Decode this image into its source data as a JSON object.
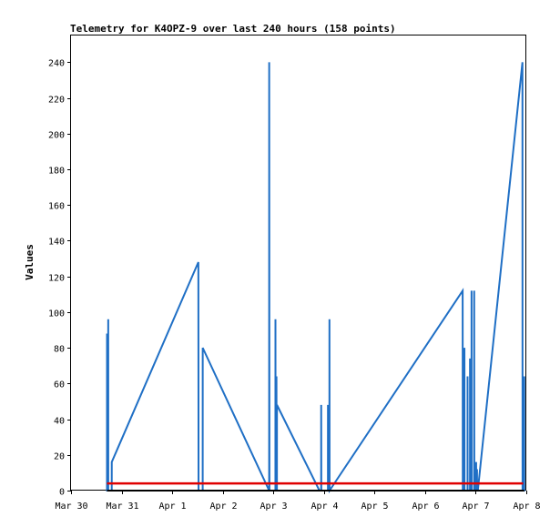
{
  "chart_data": {
    "type": "line",
    "title": "Telemetry for K4OPZ-9 over last 240 hours (158 points)",
    "xlabel": "",
    "ylabel": "Values",
    "xlim": [
      "2024-03-30T00:00",
      "2024-04-08T00:00"
    ],
    "ylim": [
      0,
      255
    ],
    "x_ticks": [
      {
        "x": "2024-03-30T00:00",
        "label": "Mar 30"
      },
      {
        "x": "2024-03-31T00:00",
        "label": "Mar 31"
      },
      {
        "x": "2024-04-01T00:00",
        "label": "Apr 1"
      },
      {
        "x": "2024-04-02T00:00",
        "label": "Apr 2"
      },
      {
        "x": "2024-04-03T00:00",
        "label": "Apr 3"
      },
      {
        "x": "2024-04-04T00:00",
        "label": "Apr 4"
      },
      {
        "x": "2024-04-05T00:00",
        "label": "Apr 5"
      },
      {
        "x": "2024-04-06T00:00",
        "label": "Apr 6"
      },
      {
        "x": "2024-04-07T00:00",
        "label": "Apr 7"
      },
      {
        "x": "2024-04-08T00:00",
        "label": "Apr 8"
      }
    ],
    "y_ticks": [
      0,
      20,
      40,
      60,
      80,
      100,
      120,
      140,
      160,
      180,
      200,
      220,
      240
    ],
    "grid": false,
    "legend": "none",
    "series": [
      {
        "color": "#1f6fc5",
        "points": [
          [
            "2024-03-30T17:04",
            0
          ],
          [
            "2024-03-30T17:05",
            88
          ],
          [
            "2024-03-30T17:06",
            0
          ],
          [
            "2024-03-30T17:38",
            0
          ],
          [
            "2024-03-30T17:39",
            96
          ],
          [
            "2024-03-30T17:40",
            0
          ],
          [
            "2024-03-30T19:19",
            0
          ],
          [
            "2024-03-30T19:20",
            16
          ],
          [
            "2024-04-01T12:25",
            128
          ],
          [
            "2024-04-01T12:30",
            0
          ],
          [
            "2024-04-01T14:28",
            0
          ],
          [
            "2024-04-01T14:29",
            80
          ],
          [
            "2024-04-02T22:00",
            0
          ],
          [
            "2024-04-02T22:01",
            240
          ],
          [
            "2024-04-02T22:08",
            0
          ],
          [
            "2024-04-03T00:58",
            0
          ],
          [
            "2024-04-03T00:59",
            96
          ],
          [
            "2024-04-03T01:03",
            0
          ],
          [
            "2024-04-03T01:27",
            0
          ],
          [
            "2024-04-03T01:28",
            64
          ],
          [
            "2024-04-03T01:32",
            0
          ],
          [
            "2024-04-03T01:41",
            0
          ],
          [
            "2024-04-03T01:42",
            48
          ],
          [
            "2024-04-03T21:51",
            0
          ],
          [
            "2024-04-03T22:40",
            0
          ],
          [
            "2024-04-03T22:41",
            48
          ],
          [
            "2024-04-03T22:45",
            0
          ],
          [
            "2024-04-04T01:53",
            0
          ],
          [
            "2024-04-04T01:54",
            48
          ],
          [
            "2024-04-04T01:58",
            0
          ],
          [
            "2024-04-04T02:35",
            0
          ],
          [
            "2024-04-04T02:36",
            96
          ],
          [
            "2024-04-04T02:40",
            0
          ],
          [
            "2024-04-06T17:48",
            112
          ],
          [
            "2024-04-06T17:52",
            0
          ],
          [
            "2024-04-06T18:38",
            0
          ],
          [
            "2024-04-06T18:39",
            80
          ],
          [
            "2024-04-06T18:41",
            0
          ],
          [
            "2024-04-06T20:07",
            0
          ],
          [
            "2024-04-06T20:08",
            64
          ],
          [
            "2024-04-06T20:10",
            0
          ],
          [
            "2024-04-06T21:16",
            0
          ],
          [
            "2024-04-06T21:17",
            74
          ],
          [
            "2024-04-06T21:19",
            0
          ],
          [
            "2024-04-06T22:00",
            0
          ],
          [
            "2024-04-06T22:01",
            112
          ],
          [
            "2024-04-06T22:04",
            0
          ],
          [
            "2024-04-06T23:15",
            0
          ],
          [
            "2024-04-06T23:16",
            112
          ],
          [
            "2024-04-06T23:20",
            0
          ],
          [
            "2024-04-07T00:11",
            0
          ],
          [
            "2024-04-07T00:12",
            16
          ],
          [
            "2024-04-07T00:14",
            0
          ],
          [
            "2024-04-07T00:36",
            0
          ],
          [
            "2024-04-07T00:37",
            12
          ],
          [
            "2024-04-07T00:39",
            0
          ],
          [
            "2024-04-07T01:00",
            0
          ],
          [
            "2024-04-07T22:10",
            240
          ],
          [
            "2024-04-07T22:13",
            0
          ],
          [
            "2024-04-07T23:00",
            0
          ],
          [
            "2024-04-07T23:01",
            64
          ],
          [
            "2024-04-07T23:03",
            0
          ]
        ]
      },
      {
        "color": "#e00000",
        "points": [
          [
            "2024-03-30T17:04",
            4
          ],
          [
            "2024-04-07T22:30",
            4
          ]
        ]
      },
      {
        "color": "#000000",
        "points": [
          [
            "2024-03-30T17:04",
            0
          ],
          [
            "2024-04-07T23:03",
            0
          ]
        ]
      }
    ]
  }
}
